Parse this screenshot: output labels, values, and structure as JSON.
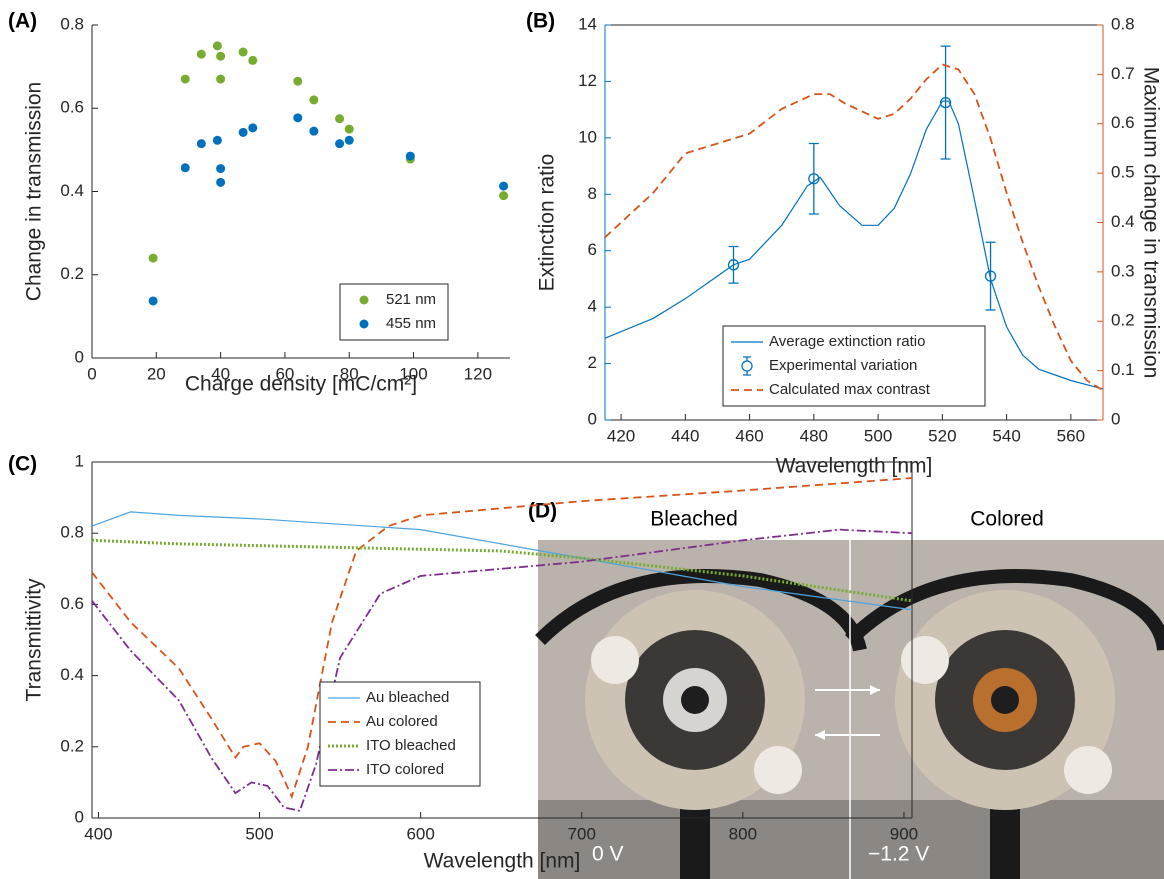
{
  "chart_data": [
    {
      "type": "scatter",
      "label": "(A)",
      "xlabel": "Charge density [mC/cm²]",
      "ylabel": "Change in transmission",
      "xlim": [
        0,
        130
      ],
      "xticks": [
        0,
        20,
        40,
        60,
        80,
        100,
        120
      ],
      "ylim": [
        0,
        0.8
      ],
      "yticks": [
        0,
        0.2,
        0.4,
        0.6,
        0.8
      ],
      "legend": "lower right",
      "series": [
        {
          "name": "521 nm",
          "color": "#77ac30",
          "x": [
            19,
            29,
            34,
            39,
            40,
            40,
            47,
            50,
            64,
            69,
            77,
            80,
            99,
            128
          ],
          "values": [
            0.24,
            0.67,
            0.73,
            0.75,
            0.725,
            0.67,
            0.735,
            0.715,
            0.665,
            0.62,
            0.575,
            0.55,
            0.478,
            0.39
          ]
        },
        {
          "name": "455 nm",
          "color": "#0072bd",
          "x": [
            19,
            29,
            34,
            39,
            40,
            40,
            47,
            50,
            64,
            69,
            77,
            80,
            99,
            128
          ],
          "values": [
            0.137,
            0.457,
            0.515,
            0.523,
            0.455,
            0.422,
            0.542,
            0.553,
            0.577,
            0.545,
            0.515,
            0.523,
            0.485,
            0.413
          ]
        }
      ]
    },
    {
      "type": "line",
      "label": "(B)",
      "xlabel": "Wavelength [nm]",
      "ylabel": "Extinction ratio",
      "y2label": "Maximum change in transmission",
      "ycolor": "#0072bd",
      "y2color": "#d95319",
      "xlim": [
        415,
        570
      ],
      "xticks": [
        420,
        440,
        460,
        480,
        500,
        520,
        540,
        560
      ],
      "ylim": [
        0,
        14
      ],
      "yticks": [
        0,
        2,
        4,
        6,
        8,
        10,
        12,
        14
      ],
      "y2lim": [
        0,
        0.8
      ],
      "y2ticks": [
        0,
        0.1,
        0.2,
        0.3,
        0.4,
        0.5,
        0.6,
        0.7,
        0.8
      ],
      "legend": "lower center",
      "series": [
        {
          "name": "Average extinction ratio",
          "color": "#0072bd",
          "style": "solid",
          "x": [
            415,
            430,
            440,
            450,
            455,
            460,
            470,
            478,
            482,
            488,
            495,
            500,
            505,
            510,
            515,
            520,
            522,
            525,
            530,
            535,
            540,
            545,
            550,
            560,
            570
          ],
          "values": [
            2.9,
            3.6,
            4.3,
            5.1,
            5.5,
            5.7,
            6.9,
            8.3,
            8.6,
            7.6,
            6.9,
            6.9,
            7.5,
            8.7,
            10.3,
            11.3,
            11.3,
            10.5,
            7.8,
            5.0,
            3.3,
            2.3,
            1.8,
            1.4,
            1.1
          ]
        },
        {
          "name": "Experimental variation",
          "color": "#0072bd",
          "style": "errorbar",
          "x": [
            455,
            480,
            521,
            535
          ],
          "values": [
            5.5,
            8.55,
            11.25,
            5.1
          ],
          "errors": [
            0.65,
            1.25,
            2.0,
            1.2
          ]
        },
        {
          "name": "Calculated max contrast",
          "color": "#d95319",
          "style": "dashed",
          "axis": "y2",
          "x": [
            415,
            430,
            440,
            450,
            460,
            470,
            480,
            485,
            490,
            500,
            505,
            510,
            515,
            520,
            525,
            530,
            535,
            540,
            545,
            550,
            555,
            560,
            565,
            570
          ],
          "values": [
            0.37,
            0.46,
            0.54,
            0.56,
            0.58,
            0.63,
            0.66,
            0.66,
            0.64,
            0.61,
            0.62,
            0.65,
            0.69,
            0.72,
            0.71,
            0.66,
            0.57,
            0.46,
            0.36,
            0.27,
            0.19,
            0.12,
            0.08,
            0.06
          ]
        }
      ]
    },
    {
      "type": "line",
      "label": "(C)",
      "xlabel": "Wavelength [nm]",
      "ylabel": "Transmittivity",
      "xlim": [
        396,
        905
      ],
      "xticks": [
        400,
        500,
        600,
        700,
        800,
        900
      ],
      "ylim": [
        0,
        1
      ],
      "yticks": [
        0,
        0.2,
        0.4,
        0.6,
        0.8,
        1
      ],
      "legend": "lower left",
      "series": [
        {
          "name": "Au bleached",
          "color": "#4da3df",
          "style": "solid",
          "x": [
            396,
            420,
            450,
            500,
            600,
            700,
            800,
            905
          ],
          "values": [
            0.82,
            0.86,
            0.85,
            0.84,
            0.81,
            0.73,
            0.65,
            0.585
          ]
        },
        {
          "name": "Au colored",
          "color": "#d95319",
          "style": "dashed",
          "x": [
            396,
            420,
            450,
            470,
            485,
            490,
            500,
            510,
            520,
            530,
            545,
            560,
            580,
            600,
            700,
            800,
            905
          ],
          "values": [
            0.69,
            0.55,
            0.42,
            0.28,
            0.17,
            0.2,
            0.21,
            0.16,
            0.06,
            0.2,
            0.55,
            0.75,
            0.82,
            0.85,
            0.89,
            0.92,
            0.955
          ]
        },
        {
          "name": "ITO bleached",
          "color": "#77ac30",
          "style": "dotted",
          "x": [
            396,
            450,
            550,
            650,
            700,
            800,
            905
          ],
          "values": [
            0.78,
            0.77,
            0.76,
            0.75,
            0.73,
            0.68,
            0.61
          ]
        },
        {
          "name": "ITO colored",
          "color": "#7e2f8e",
          "style": "dashdot",
          "x": [
            396,
            420,
            450,
            470,
            485,
            495,
            505,
            515,
            525,
            535,
            550,
            575,
            600,
            700,
            800,
            860,
            905
          ],
          "values": [
            0.61,
            0.47,
            0.33,
            0.17,
            0.07,
            0.1,
            0.09,
            0.03,
            0.02,
            0.15,
            0.45,
            0.63,
            0.68,
            0.72,
            0.78,
            0.81,
            0.8
          ]
        }
      ]
    }
  ],
  "photo": {
    "label": "(D)",
    "states": [
      "Bleached",
      "Colored"
    ],
    "voltages": [
      "0 V",
      "−1.2 V"
    ]
  }
}
